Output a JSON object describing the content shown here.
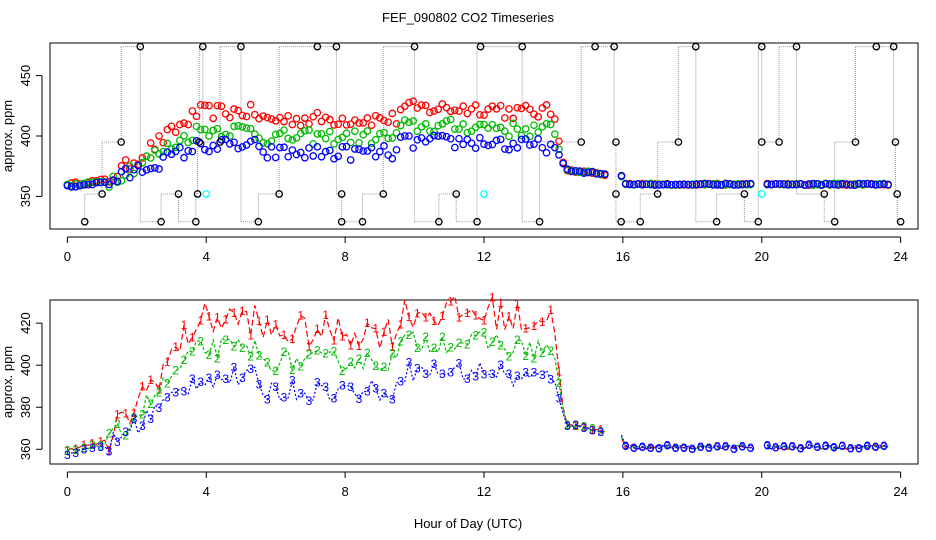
{
  "title": "FEF_090802  CO2 Timeseries",
  "xlabel": "Hour of Day (UTC)",
  "chart_data": [
    {
      "type": "scatter",
      "panel": "top",
      "ylabel": "approx. ppm",
      "xlim": [
        -0.5,
        24.5
      ],
      "ylim": [
        323,
        477
      ],
      "xticks": [
        0,
        4,
        8,
        12,
        16,
        20,
        24
      ],
      "yticks": [
        350,
        400,
        450
      ],
      "grid": false,
      "marker": "circle",
      "connectors": "gray dotted vertical lines between consecutive black points",
      "colors": {
        "black": "#000000",
        "red": "#ff0000",
        "green": "#00bb00",
        "blue": "#0000ff",
        "cyan": "#00ffff"
      },
      "series": {
        "black_high": [
          [
            2.1,
            474
          ],
          [
            3.9,
            474
          ],
          [
            5.0,
            474
          ],
          [
            7.2,
            474
          ],
          [
            7.75,
            474
          ],
          [
            10.0,
            474
          ],
          [
            11.9,
            474
          ],
          [
            13.1,
            474
          ],
          [
            15.2,
            474
          ],
          [
            15.75,
            474
          ],
          [
            18.1,
            474
          ],
          [
            20.0,
            474
          ],
          [
            21.0,
            474
          ],
          [
            23.3,
            474
          ],
          [
            23.8,
            474
          ]
        ],
        "black_mid": [
          [
            1.55,
            395
          ],
          [
            3.8,
            395
          ],
          [
            4.4,
            395
          ],
          [
            14.8,
            395
          ],
          [
            15.8,
            395
          ],
          [
            17.6,
            395
          ],
          [
            20.0,
            395
          ],
          [
            20.5,
            395
          ],
          [
            22.7,
            395
          ],
          [
            23.85,
            395
          ]
        ],
        "black_350": [
          [
            1.0,
            352
          ],
          [
            3.2,
            352
          ],
          [
            3.75,
            352
          ],
          [
            6.1,
            352
          ],
          [
            7.9,
            352
          ],
          [
            9.1,
            352
          ],
          [
            11.2,
            352
          ],
          [
            15.8,
            352
          ],
          [
            17.0,
            352
          ],
          [
            19.5,
            352
          ],
          [
            21.8,
            352
          ],
          [
            23.9,
            352
          ]
        ],
        "black_low": [
          [
            0.5,
            329
          ],
          [
            2.7,
            329
          ],
          [
            3.7,
            329
          ],
          [
            5.5,
            329
          ],
          [
            7.9,
            329
          ],
          [
            8.5,
            329
          ],
          [
            10.7,
            329
          ],
          [
            11.8,
            329
          ],
          [
            13.6,
            329
          ],
          [
            15.95,
            329
          ],
          [
            16.5,
            329
          ],
          [
            18.7,
            329
          ],
          [
            19.9,
            329
          ],
          [
            22.1,
            329
          ],
          [
            24.0,
            329
          ]
        ],
        "cyan": [
          [
            4.0,
            352
          ],
          [
            12.0,
            352
          ],
          [
            20.0,
            352
          ]
        ],
        "red_daytime_ppm_range": [
          395,
          428
        ],
        "green_daytime_ppm_range": [
          385,
          415
        ],
        "blue_daytime_ppm_range": [
          382,
          400
        ]
      }
    },
    {
      "type": "line",
      "panel": "bottom",
      "ylabel": "approx. ppm",
      "xlim": [
        -0.5,
        24.5
      ],
      "ylim": [
        353,
        431
      ],
      "xticks": [
        0,
        4,
        8,
        12,
        16,
        20,
        24
      ],
      "yticks": [
        360,
        380,
        400,
        420
      ],
      "grid": false,
      "series_markers": [
        "1",
        "2",
        "3"
      ],
      "colors": {
        "1": "#ff0000",
        "2": "#00bb00",
        "3": "#0000ff"
      },
      "approx_levels": {
        "night_early_hour0": 358,
        "day_1_peak": 428,
        "day_2_peak": 414,
        "day_3_peak": 400,
        "evening_hour16_to_24": 361
      }
    }
  ]
}
